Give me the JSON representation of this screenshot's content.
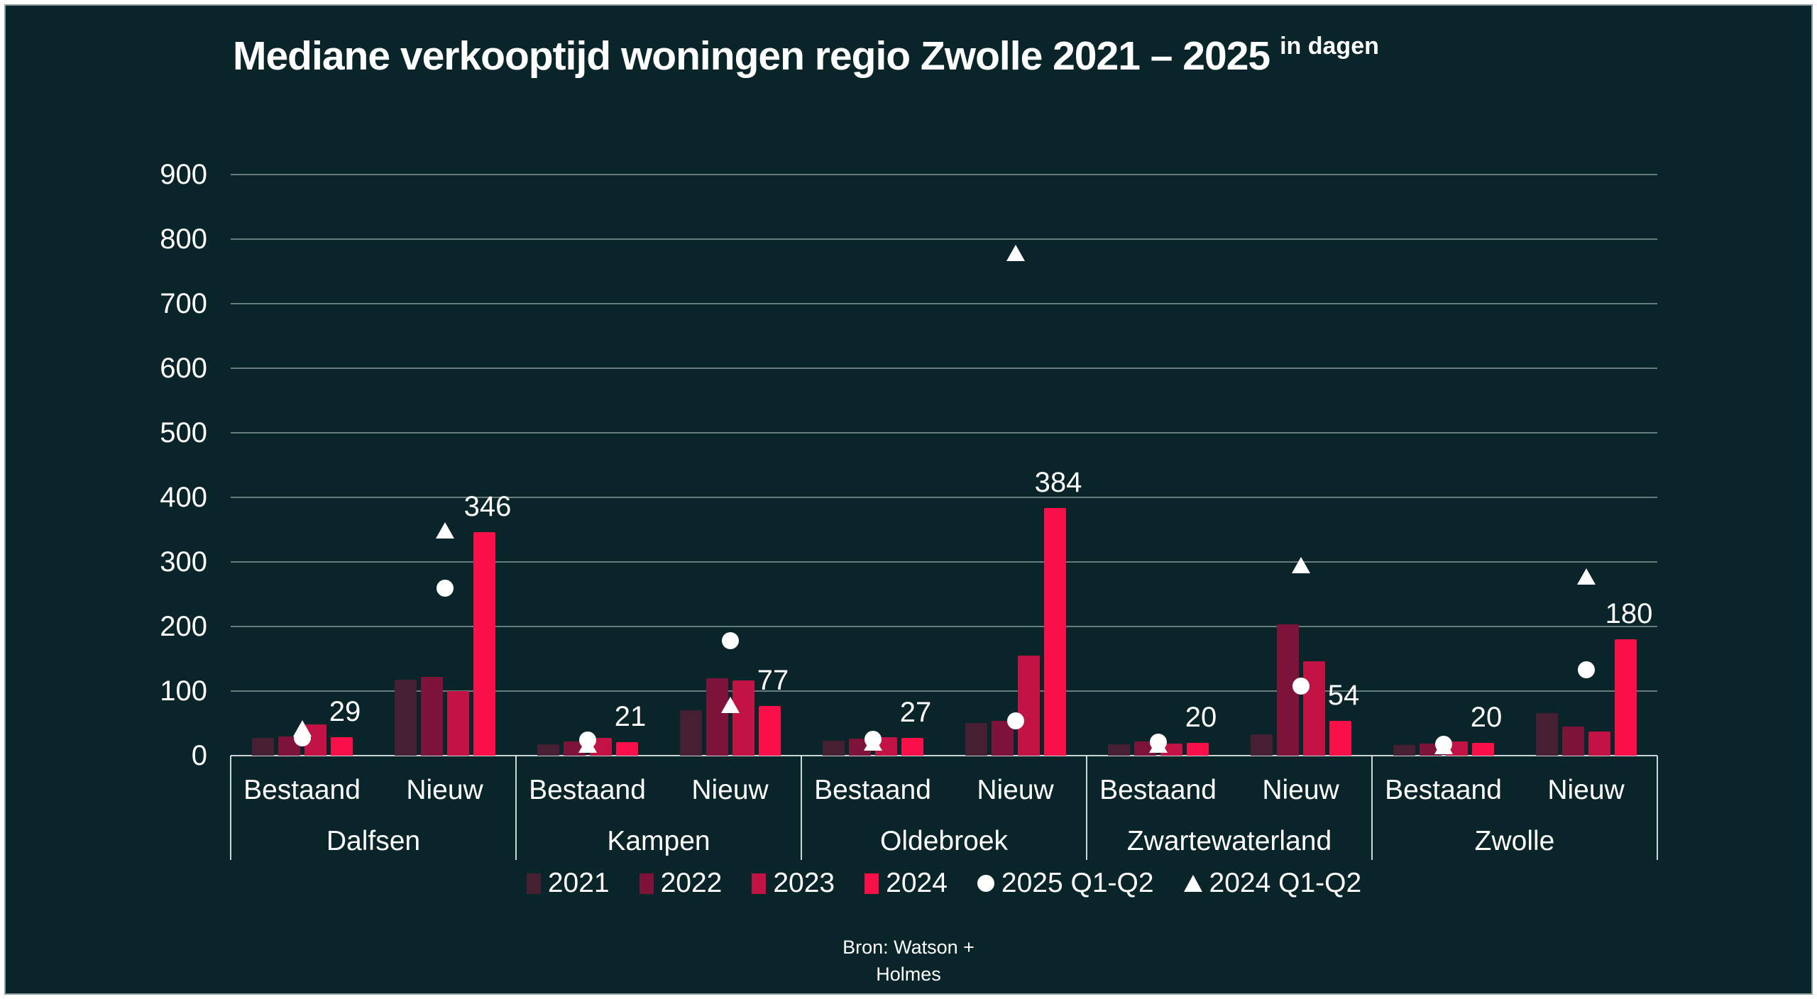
{
  "title": {
    "main": "Mediane verkooptijd woningen regio Zwolle 2021 – 2025",
    "superscript": "in dagen"
  },
  "source": {
    "line1": "Bron: Watson +",
    "line2": "Holmes"
  },
  "colors": {
    "background": "#0a2529",
    "text": "#ffffff",
    "grid_line": "rgba(235,245,245,0.42)",
    "axis_line": "rgba(235,245,245,0.85)",
    "marker": "#ffffff",
    "bars": [
      "#461f33",
      "#7e1339",
      "#c31244",
      "#fa1048"
    ]
  },
  "legend": {
    "items": [
      {
        "type": "swatch",
        "label": "2021",
        "color": "#461f33"
      },
      {
        "type": "swatch",
        "label": "2022",
        "color": "#7e1339"
      },
      {
        "type": "swatch",
        "label": "2023",
        "color": "#c31244"
      },
      {
        "type": "swatch",
        "label": "2024",
        "color": "#fa1048"
      },
      {
        "type": "circle",
        "label": "2025 Q1-Q2",
        "color": "#ffffff"
      },
      {
        "type": "triangle",
        "label": "2024 Q1-Q2",
        "color": "#ffffff"
      }
    ]
  },
  "chart_data": {
    "type": "bar",
    "title": "Mediane verkooptijd woningen regio Zwolle 2021 – 2025 in dagen",
    "ylabel": "dagen",
    "ylim": [
      0,
      900
    ],
    "yticks": [
      0,
      100,
      200,
      300,
      400,
      500,
      600,
      700,
      800,
      900
    ],
    "grid": "on",
    "legend_position": "bottom",
    "series_years": [
      "2021",
      "2022",
      "2023",
      "2024"
    ],
    "marker_series": {
      "circle": "2025 Q1-Q2",
      "triangle": "2024 Q1-Q2"
    },
    "groups": [
      {
        "municipality": "Dalfsen",
        "subgroups": [
          {
            "label": "Bestaand",
            "bar_values": [
              28,
              30,
              48,
              29
            ],
            "value_label": "29",
            "marker_2025_q1q2": 27,
            "marker_2024_q1q2": 42
          },
          {
            "label": "Nieuw",
            "bar_values": [
              118,
              122,
              100,
              346
            ],
            "value_label": "346",
            "marker_2025_q1q2": 259,
            "marker_2024_q1q2": 348
          }
        ]
      },
      {
        "municipality": "Kampen",
        "subgroups": [
          {
            "label": "Bestaand",
            "bar_values": [
              18,
              22,
              28,
              21
            ],
            "value_label": "21",
            "marker_2025_q1q2": 24,
            "marker_2024_q1q2": 17
          },
          {
            "label": "Nieuw",
            "bar_values": [
              70,
              120,
              117,
              77
            ],
            "value_label": "77",
            "marker_2025_q1q2": 178,
            "marker_2024_q1q2": 78
          }
        ]
      },
      {
        "municipality": "Oldebroek",
        "subgroups": [
          {
            "label": "Bestaand",
            "bar_values": [
              23,
              26,
              29,
              27
            ],
            "value_label": "27",
            "marker_2025_q1q2": 25,
            "marker_2024_q1q2": 20
          },
          {
            "label": "Nieuw",
            "bar_values": [
              51,
              54,
              155,
              384
            ],
            "value_label": "384",
            "marker_2025_q1q2": 54,
            "marker_2024_q1q2": 778
          }
        ]
      },
      {
        "municipality": "Zwartewaterland",
        "subgroups": [
          {
            "label": "Bestaand",
            "bar_values": [
              18,
              22,
              19,
              20
            ],
            "value_label": "20",
            "marker_2025_q1q2": 21,
            "marker_2024_q1q2": 16
          },
          {
            "label": "Nieuw",
            "bar_values": [
              33,
              203,
              146,
              54
            ],
            "value_label": "54",
            "marker_2025_q1q2": 108,
            "marker_2024_q1q2": 294
          }
        ]
      },
      {
        "municipality": "Zwolle",
        "subgroups": [
          {
            "label": "Bestaand",
            "bar_values": [
              16,
              19,
              22,
              20
            ],
            "value_label": "20",
            "marker_2025_q1q2": 18,
            "marker_2024_q1q2": 14
          },
          {
            "label": "Nieuw",
            "bar_values": [
              66,
              45,
              37,
              180
            ],
            "value_label": "180",
            "marker_2025_q1q2": 133,
            "marker_2024_q1q2": 277
          }
        ]
      }
    ]
  }
}
